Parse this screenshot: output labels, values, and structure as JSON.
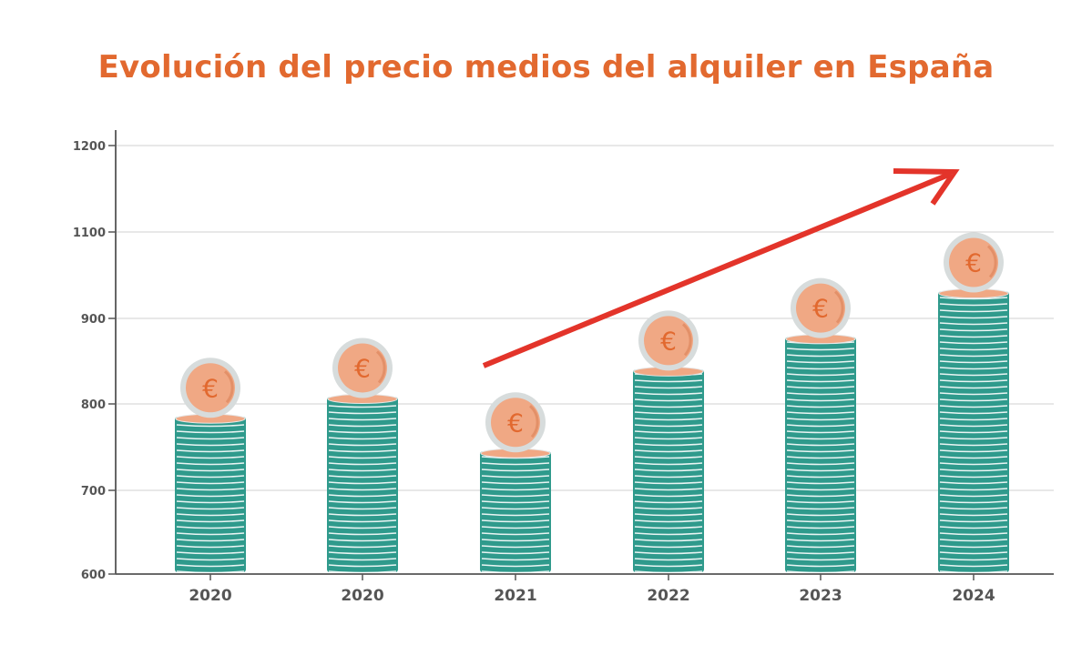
{
  "chart_data": {
    "type": "bar",
    "title": "Evolución del precio medios del alquiler en España",
    "categories": [
      "2020",
      "2020",
      "2021",
      "2022",
      "2023",
      "2024"
    ],
    "values": [
      785,
      808,
      745,
      840,
      878,
      962
    ],
    "y_ticks": [
      "600",
      "700",
      "800",
      "900",
      "1100",
      "1200"
    ],
    "grid": true,
    "coin_symbol": "€",
    "annotation": "red-trend-arrow-up",
    "colors": {
      "title": "#e2692f",
      "coin_stack": "#2f9a8c",
      "coin_edge": "#ffffff",
      "coin": "#f0a884",
      "coin_rim": "#d7dcdc",
      "symbol": "#e2692f",
      "arrow": "#e3342a",
      "grid": "#d0d0d0",
      "axis": "#555555"
    }
  }
}
